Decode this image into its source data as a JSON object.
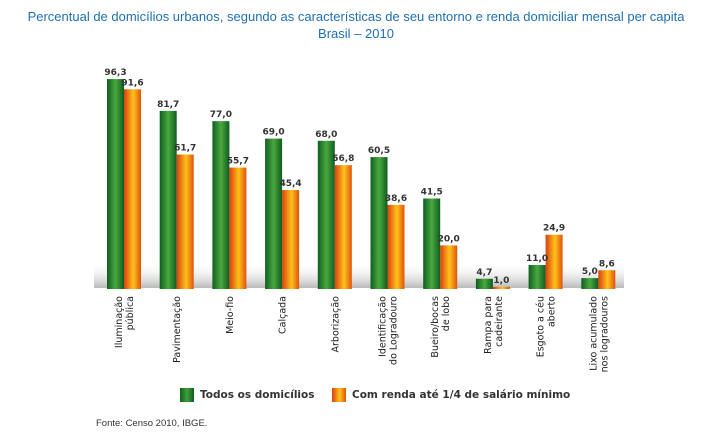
{
  "title_line1": "Percentual de domicílios urbanos, segundo as características de seu entorno e renda domiciliar mensal per capita",
  "title_line2": "Brasil – 2010",
  "source": "Fonte: Censo 2010, IBGE.",
  "colors": {
    "title": "#1f6fb2",
    "series1_dark": "#0e5e1f",
    "series1_light": "#3fa03a",
    "series2_dark": "#d9400f",
    "series2_light": "#ffc21a"
  },
  "chart_data": {
    "type": "bar",
    "title": "Percentual de domicílios urbanos, segundo as características de seu entorno e renda domiciliar mensal per capita – Brasil – 2010",
    "categories": [
      [
        "Iluminação",
        "pública"
      ],
      [
        "Pavimentação"
      ],
      [
        "Meio-fio"
      ],
      [
        "Calçada"
      ],
      [
        "Arborização"
      ],
      [
        "Identificação",
        "do Logradouro"
      ],
      [
        "Bueiro/bocas",
        "de lobo"
      ],
      [
        "Rampa para",
        "cadeirante"
      ],
      [
        "Esgoto a céu",
        "aberto"
      ],
      [
        "Lixo acumulado",
        "nos logradouros"
      ]
    ],
    "series": [
      {
        "name": "Todos os domicílios",
        "values": [
          96.3,
          81.7,
          77.0,
          69.0,
          68.0,
          60.5,
          41.5,
          4.7,
          11.0,
          5.0
        ],
        "labels": [
          "96,3",
          "81,7",
          "77,0",
          "69,0",
          "68,0",
          "60,5",
          "41,5",
          "4,7",
          "11,0",
          "5,0"
        ]
      },
      {
        "name": "Com renda até 1/4 de salário mínimo",
        "values": [
          91.6,
          61.7,
          55.7,
          45.4,
          56.8,
          38.6,
          20.0,
          1.0,
          24.9,
          8.6
        ],
        "labels": [
          "91,6",
          "61,7",
          "55,7",
          "45,4",
          "56,8",
          "38,6",
          "20,0",
          "1,0",
          "24,9",
          "8,6"
        ]
      }
    ],
    "ylim": [
      0,
      100
    ],
    "xlabel": "",
    "ylabel": "",
    "legend_position": "bottom"
  }
}
